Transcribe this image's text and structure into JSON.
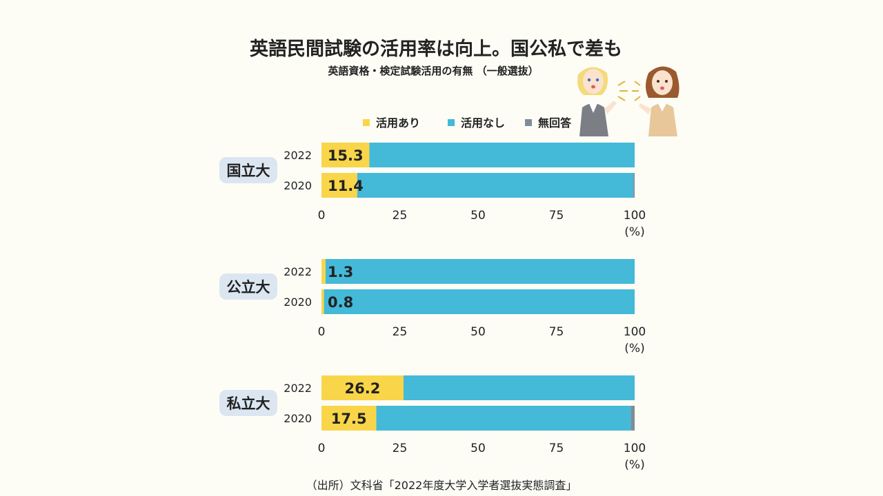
{
  "title": "英語民間試験の活用率は向上。国公私で差も",
  "subtitle": "英語資格・検定試験活用の有無 （一般選抜）",
  "source": "（出所）文科省「2022年度大学入学者選抜実態調査」",
  "colors": {
    "used": "#f9d54a",
    "not_used": "#44b9d8",
    "no_answer": "#7f8c99",
    "label_bg": "#dbe6f1"
  },
  "chart_data": {
    "type": "bar",
    "orientation": "horizontal",
    "stacked": true,
    "legend": {
      "position": "top",
      "items": [
        "活用あり",
        "活用なし",
        "無回答"
      ]
    },
    "xlim": [
      0,
      100
    ],
    "xticks": [
      "0",
      "25",
      "50",
      "75",
      "100"
    ],
    "xunit": "(%)",
    "groups": [
      {
        "label": "国立大",
        "rows": [
          {
            "year": "2022",
            "used": 15.3,
            "not_used": 84.7,
            "no_answer": 0.0,
            "data_label": "15.3"
          },
          {
            "year": "2020",
            "used": 11.4,
            "not_used": 88.2,
            "no_answer": 0.4,
            "data_label": "11.4"
          }
        ]
      },
      {
        "label": "公立大",
        "rows": [
          {
            "year": "2022",
            "used": 1.3,
            "not_used": 98.7,
            "no_answer": 0.0,
            "data_label": "1.3"
          },
          {
            "year": "2020",
            "used": 0.8,
            "not_used": 99.2,
            "no_answer": 0.0,
            "data_label": "0.8"
          }
        ]
      },
      {
        "label": "私立大",
        "rows": [
          {
            "year": "2022",
            "used": 26.2,
            "not_used": 73.8,
            "no_answer": 0.0,
            "data_label": "26.2"
          },
          {
            "year": "2020",
            "used": 17.5,
            "not_used": 81.3,
            "no_answer": 1.2,
            "data_label": "17.5"
          }
        ]
      }
    ]
  }
}
